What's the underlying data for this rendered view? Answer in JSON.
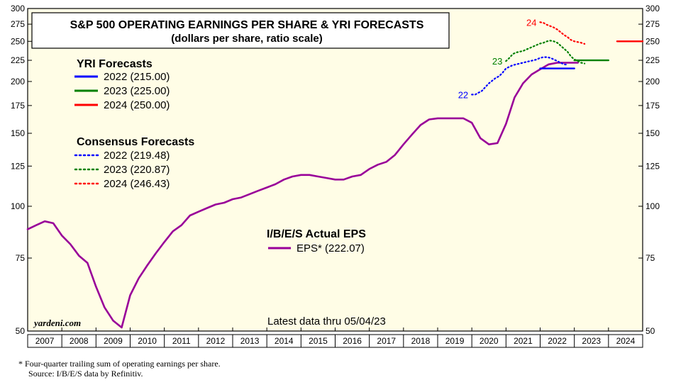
{
  "chart_data": {
    "type": "line",
    "title": "S&P 500 OPERATING EARNINGS PER SHARE & YRI FORECASTS",
    "subtitle": "(dollars per share, ratio scale)",
    "y_scale": "log",
    "ylim": [
      50,
      300
    ],
    "y_ticks": [
      50,
      75,
      100,
      125,
      150,
      175,
      200,
      225,
      250,
      275,
      300
    ],
    "xlim": [
      2007,
      2025
    ],
    "x_tick_labels": [
      "2007",
      "2008",
      "2009",
      "2010",
      "2011",
      "2012",
      "2013",
      "2014",
      "2015",
      "2016",
      "2017",
      "2018",
      "2019",
      "2020",
      "2021",
      "2022",
      "2023",
      "2024"
    ],
    "grid": false,
    "background": "#fffde6",
    "yri_legend": {
      "heading": "YRI Forecasts",
      "items": [
        {
          "label": "2022 (215.00)",
          "color": "#0000ff"
        },
        {
          "label": "2023 (225.00)",
          "color": "#008000"
        },
        {
          "label": "2024 (250.00)",
          "color": "#ff0000"
        }
      ]
    },
    "consensus_legend": {
      "heading": "Consensus Forecasts",
      "items": [
        {
          "label": "2022 (219.48)",
          "color": "#0000ff"
        },
        {
          "label": "2023 (220.87)",
          "color": "#008000"
        },
        {
          "label": "2024 (246.43)",
          "color": "#ff0000"
        }
      ]
    },
    "eps_legend": {
      "heading": "I/B/E/S Actual EPS",
      "label": "EPS* (222.07)",
      "color": "#990099"
    },
    "series": [
      {
        "name": "EPS* (222.07)",
        "style": "solid",
        "color": "#990099",
        "x": [
          2007.0,
          2007.25,
          2007.5,
          2007.75,
          2008.0,
          2008.25,
          2008.5,
          2008.75,
          2009.0,
          2009.25,
          2009.5,
          2009.75,
          2010.0,
          2010.25,
          2010.5,
          2010.75,
          2011.0,
          2011.25,
          2011.5,
          2011.75,
          2012.0,
          2012.25,
          2012.5,
          2012.75,
          2013.0,
          2013.25,
          2013.5,
          2013.75,
          2014.0,
          2014.25,
          2014.5,
          2014.75,
          2015.0,
          2015.25,
          2015.5,
          2015.75,
          2016.0,
          2016.25,
          2016.5,
          2016.75,
          2017.0,
          2017.25,
          2017.5,
          2017.75,
          2018.0,
          2018.25,
          2018.5,
          2018.75,
          2019.0,
          2019.25,
          2019.5,
          2019.75,
          2020.0,
          2020.25,
          2020.5,
          2020.75,
          2021.0,
          2021.25,
          2021.5,
          2021.75,
          2022.0,
          2022.25,
          2022.5,
          2022.75,
          2023.0,
          2023.1
        ],
        "values": [
          88,
          90,
          92,
          91,
          85,
          81,
          76,
          73,
          64,
          57,
          53,
          51,
          61,
          67,
          72,
          77,
          82,
          87,
          90,
          95,
          97,
          99,
          101,
          102,
          104,
          105,
          107,
          109,
          111,
          113,
          116,
          118,
          119,
          119,
          118,
          117,
          116,
          116,
          118,
          119,
          123,
          126,
          128,
          133,
          141,
          149,
          157,
          162,
          163,
          163,
          163,
          163,
          159,
          146,
          141,
          142,
          158,
          183,
          198,
          208,
          214,
          220,
          222,
          222,
          222,
          222
        ]
      },
      {
        "name": "Consensus 2022 (219.48)",
        "style": "dotted",
        "color": "#0000ff",
        "start_label": "22",
        "x": [
          2020.0,
          2020.1,
          2020.2,
          2020.3,
          2020.4,
          2020.5,
          2020.6,
          2020.7,
          2020.8,
          2020.9,
          2021.0,
          2021.1,
          2021.2,
          2021.3,
          2021.4,
          2021.5,
          2021.6,
          2021.7,
          2021.8,
          2021.9,
          2022.0,
          2022.1,
          2022.2,
          2022.3,
          2022.4,
          2022.5,
          2022.6,
          2022.7,
          2022.8
        ],
        "values": [
          186,
          186,
          188,
          190,
          194,
          198,
          201,
          204,
          206,
          210,
          215,
          217,
          219,
          220,
          221,
          222,
          223,
          224,
          225,
          226,
          228,
          229,
          229,
          228,
          226,
          224,
          222,
          220,
          219.5
        ]
      },
      {
        "name": "Consensus 2023 (220.87)",
        "style": "dotted",
        "color": "#008000",
        "start_label": "23",
        "x": [
          2021.0,
          2021.1,
          2021.2,
          2021.3,
          2021.4,
          2021.5,
          2021.6,
          2021.7,
          2021.8,
          2021.9,
          2022.0,
          2022.1,
          2022.2,
          2022.3,
          2022.4,
          2022.5,
          2022.6,
          2022.7,
          2022.8,
          2022.9,
          2023.0,
          2023.1,
          2023.2,
          2023.3
        ],
        "values": [
          224,
          228,
          233,
          235,
          236,
          237,
          239,
          241,
          243,
          245,
          247,
          248,
          250,
          251,
          250,
          248,
          244,
          240,
          236,
          230,
          226,
          224,
          222,
          221
        ]
      },
      {
        "name": "Consensus 2024 (246.43)",
        "style": "dotted",
        "color": "#ff0000",
        "start_label": "24",
        "x": [
          2022.0,
          2022.1,
          2022.2,
          2022.3,
          2022.4,
          2022.5,
          2022.6,
          2022.7,
          2022.8,
          2022.9,
          2023.0,
          2023.1,
          2023.2,
          2023.3
        ],
        "values": [
          278,
          277,
          274,
          272,
          270,
          267,
          263,
          259,
          256,
          252,
          250,
          249,
          248,
          246.5
        ]
      },
      {
        "name": "YRI 2022 (215.00)",
        "style": "solid",
        "color": "#0000ff",
        "x": [
          2022.0,
          2023.0
        ],
        "values": [
          215,
          215
        ]
      },
      {
        "name": "YRI 2023 (225.00)",
        "style": "solid",
        "color": "#008000",
        "x": [
          2023.0,
          2024.0
        ],
        "values": [
          225,
          225
        ]
      },
      {
        "name": "YRI 2024 (250.00)",
        "style": "solid",
        "color": "#ff0000",
        "x": [
          2024.25,
          2025.0
        ],
        "values": [
          250,
          250
        ]
      }
    ],
    "annotations": {
      "brand": "yardeni.com",
      "latest": "Latest data thru 05/04/23"
    },
    "footnotes": [
      "*  Four-quarter trailing sum of operating earnings per share.",
      "Source: I/B/E/S data by Refinitiv."
    ]
  }
}
